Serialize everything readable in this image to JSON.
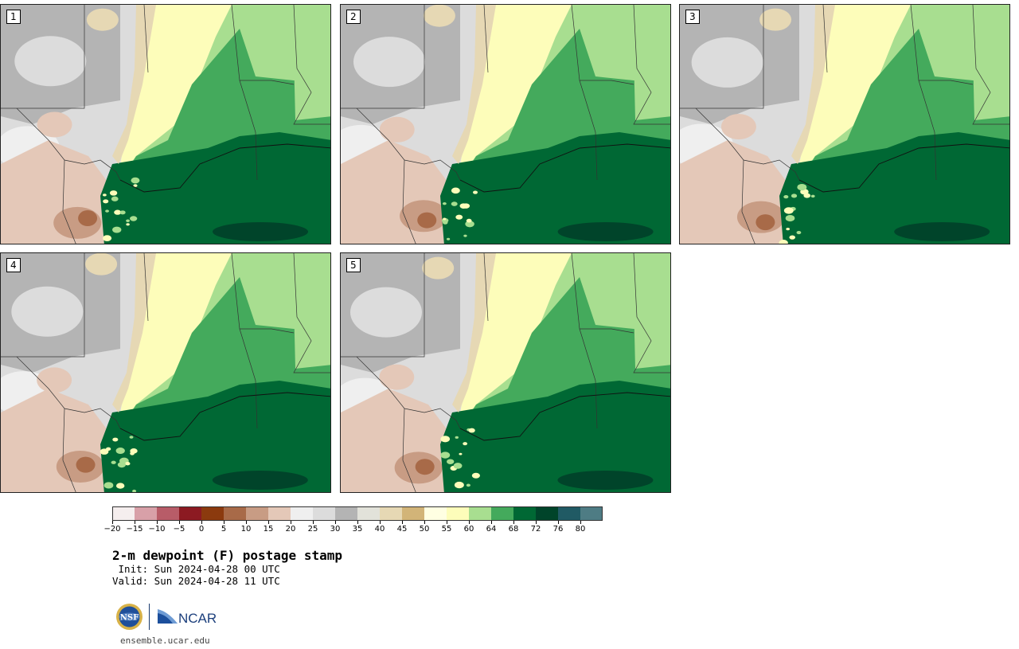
{
  "title": "2-m dewpoint (F) postage stamp",
  "init_line": " Init: Sun 2024-04-28 00 UTC",
  "valid_line": "Valid: Sun 2024-04-28 11 UTC",
  "website": "ensemble.ucar.edu",
  "logos": {
    "left": "nsf-logo",
    "right": "NCAR"
  },
  "panels": [
    {
      "number": "1"
    },
    {
      "number": "2"
    },
    {
      "number": "3"
    },
    {
      "number": "4"
    },
    {
      "number": "5"
    }
  ],
  "colorbar": {
    "ticks": [
      "−20",
      "−15",
      "−10",
      "−5",
      "0",
      "5",
      "10",
      "15",
      "20",
      "25",
      "30",
      "35",
      "40",
      "45",
      "50",
      "55",
      "60",
      "64",
      "68",
      "72",
      "76",
      "80"
    ],
    "colors": [
      "#f5eeee",
      "#d8a0a8",
      "#b85c68",
      "#8c1a22",
      "#8b3a0e",
      "#a86a48",
      "#c89c84",
      "#e4c8b8",
      "#efefef",
      "#dcdcdc",
      "#b4b4b4",
      "#e2e2da",
      "#e6d8b4",
      "#d2b478",
      "#ffffe2",
      "#fdfdba",
      "#a8de90",
      "#44aa5c",
      "#006834",
      "#00442a",
      "#205a64",
      "#4e7c84"
    ]
  },
  "map_colors": {
    "gray_dark": "#b4b4b4",
    "gray_mid": "#dcdcdc",
    "gray_light": "#efefef",
    "tan": "#e4c8b8",
    "tan_dark": "#c89c84",
    "brown": "#a86a48",
    "beige": "#e6d8b4",
    "pale_yellow": "#fdfdba",
    "light_green": "#a8de90",
    "green": "#44aa5c",
    "dark_green": "#006834",
    "darkest_green": "#00442a"
  }
}
